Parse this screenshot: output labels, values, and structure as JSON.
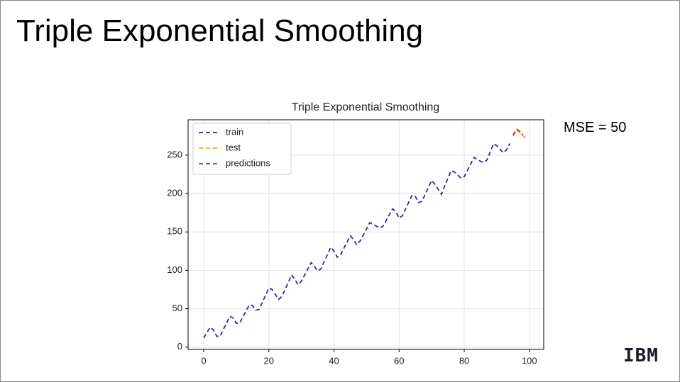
{
  "slide_title": "Triple Exponential Smoothing",
  "annotation": "MSE = 50",
  "logo": "IBM",
  "chart_data": {
    "type": "line",
    "title": "Triple Exponential Smoothing",
    "xlim": [
      -4.8,
      104.4
    ],
    "ylim": [
      -3,
      296
    ],
    "xticks": [
      0,
      20,
      40,
      60,
      80,
      100
    ],
    "yticks": [
      0,
      50,
      100,
      150,
      200,
      250
    ],
    "grid": true,
    "legend": "upper-left",
    "series": [
      {
        "name": "train",
        "color": "#2424c8",
        "x": [
          0,
          2,
          3,
          4,
          5,
          8,
          9,
          10,
          11,
          14,
          15,
          16,
          17,
          20,
          21,
          23,
          24,
          27,
          28,
          29,
          30,
          33,
          34,
          35,
          36,
          39,
          40,
          41,
          42,
          45,
          46,
          47,
          48,
          51,
          52,
          54,
          55,
          58,
          59,
          60,
          61,
          64,
          65,
          66,
          67,
          70,
          71,
          73,
          74,
          76,
          77,
          79,
          80,
          83,
          84,
          86,
          87,
          89,
          90,
          92,
          93,
          94
        ],
        "values": [
          12,
          26,
          22,
          14,
          14,
          40,
          38,
          31,
          31,
          55,
          54,
          48,
          49,
          77,
          75,
          62,
          66,
          94,
          88,
          81,
          86,
          110,
          105,
          99,
          102,
          130,
          125,
          117,
          120,
          145,
          140,
          133,
          138,
          162,
          160,
          155,
          157,
          180,
          176,
          168,
          171,
          198,
          196,
          188,
          190,
          217,
          212,
          199,
          210,
          230,
          228,
          220,
          222,
          247,
          244,
          240,
          244,
          265,
          262,
          253,
          257,
          265
        ]
      },
      {
        "name": "test",
        "color": "#f5a623",
        "x": [
          95,
          96,
          97,
          98,
          99
        ],
        "values": [
          275,
          282,
          280,
          275,
          272
        ]
      },
      {
        "name": "predictions",
        "color": "#d42020",
        "x": [
          95,
          96,
          97,
          98
        ],
        "values": [
          276,
          284,
          281,
          276
        ]
      }
    ]
  }
}
